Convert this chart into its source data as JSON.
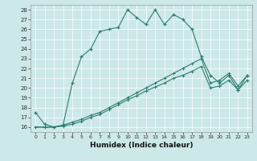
{
  "xlabel": "Humidex (Indice chaleur)",
  "bg_color": "#cce8e8",
  "line_color": "#2e7d6e",
  "grid_color": "#b0d0d0",
  "xlim": [
    -0.5,
    23.5
  ],
  "ylim": [
    15.5,
    28.5
  ],
  "xticks": [
    0,
    1,
    2,
    3,
    4,
    5,
    6,
    7,
    8,
    9,
    10,
    11,
    12,
    13,
    14,
    15,
    16,
    17,
    18,
    19,
    20,
    21,
    22,
    23
  ],
  "yticks": [
    16,
    17,
    18,
    19,
    20,
    21,
    22,
    23,
    24,
    25,
    26,
    27,
    28
  ],
  "series1_y": [
    17.5,
    16.3,
    16.0,
    16.2,
    20.5,
    23.2,
    24.0,
    25.8,
    26.0,
    26.2,
    28.0,
    27.2,
    26.5,
    28.0,
    26.5,
    27.5,
    27.0,
    26.0,
    23.2,
    21.3,
    20.5,
    21.3,
    19.8,
    21.3
  ],
  "series2_y": [
    16.0,
    16.0,
    16.0,
    16.2,
    16.5,
    16.8,
    17.2,
    17.5,
    18.0,
    18.5,
    19.0,
    19.5,
    20.0,
    20.5,
    21.0,
    21.5,
    22.0,
    22.5,
    23.0,
    20.5,
    20.8,
    21.5,
    20.2,
    21.3
  ],
  "series3_y": [
    16.0,
    16.0,
    16.0,
    16.1,
    16.3,
    16.6,
    17.0,
    17.3,
    17.8,
    18.3,
    18.8,
    19.2,
    19.7,
    20.1,
    20.5,
    21.0,
    21.3,
    21.7,
    22.2,
    20.0,
    20.2,
    20.8,
    19.8,
    20.8
  ]
}
